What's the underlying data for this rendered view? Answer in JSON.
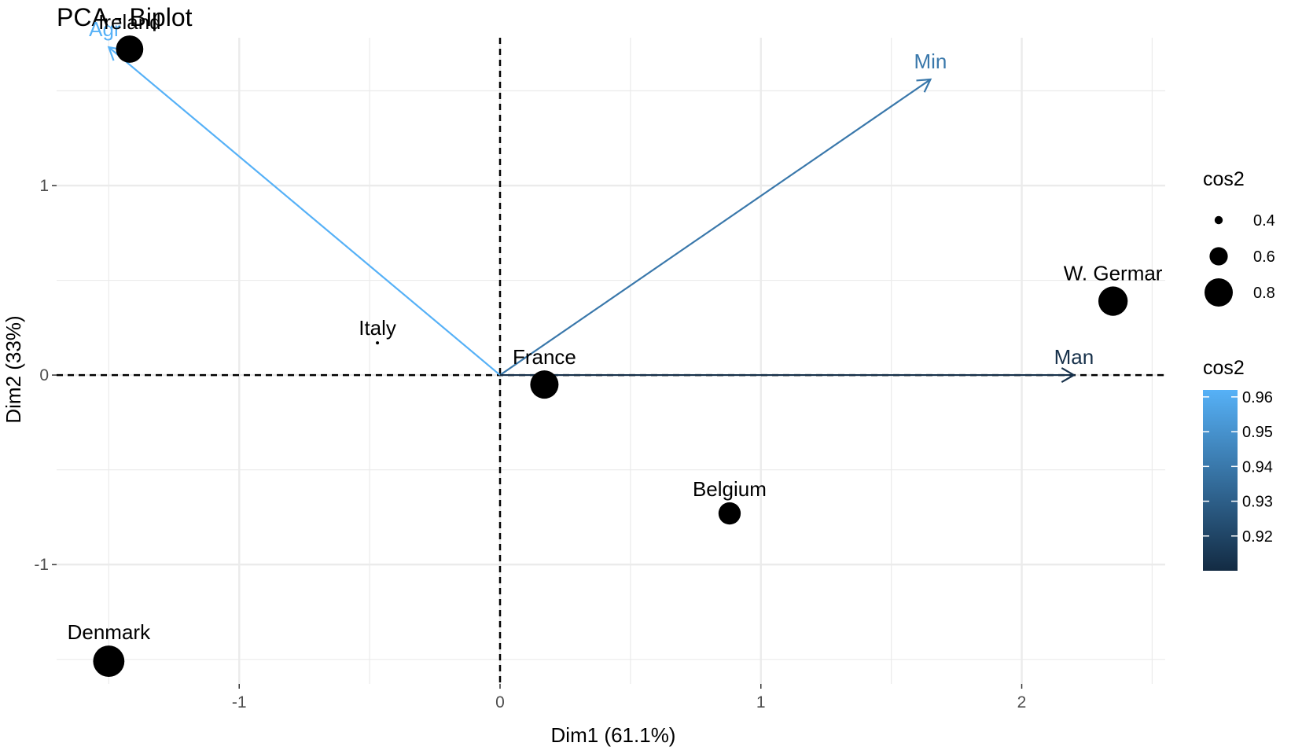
{
  "chart_data": {
    "type": "scatter",
    "title": "PCA - Biplot",
    "xlabel": "Dim1 (61.1%)",
    "ylabel": "Dim2 (33%)",
    "xlim": [
      -1.7,
      2.55
    ],
    "ylim": [
      -1.63,
      1.78
    ],
    "grid": true,
    "x_ticks": [
      {
        "value": -1,
        "label": "-1"
      },
      {
        "value": 0,
        "label": "0"
      },
      {
        "value": 1,
        "label": "1"
      },
      {
        "value": 2,
        "label": "2"
      }
    ],
    "y_ticks": [
      {
        "value": 1,
        "label": "1"
      },
      {
        "value": 0,
        "label": "0"
      },
      {
        "value": -1,
        "label": "-1"
      }
    ],
    "points": [
      {
        "label": "Ireland",
        "x": -1.42,
        "y": 1.72,
        "cos2": 0.78
      },
      {
        "label": "Italy",
        "x": -0.47,
        "y": 0.17,
        "cos2": 0.3
      },
      {
        "label": "France",
        "x": 0.17,
        "y": -0.05,
        "cos2": 0.8
      },
      {
        "label": "Belgium",
        "x": 0.88,
        "y": -0.73,
        "cos2": 0.68
      },
      {
        "label": "W. Germar",
        "x": 2.35,
        "y": 0.39,
        "cos2": 0.82
      },
      {
        "label": "Denmark",
        "x": -1.5,
        "y": -1.51,
        "cos2": 0.86
      }
    ],
    "variables": [
      {
        "label": "Agr",
        "x": -1.5,
        "y": 1.73,
        "cos2": 0.965
      },
      {
        "label": "Min",
        "x": 1.65,
        "y": 1.56,
        "cos2": 0.94
      },
      {
        "label": "Man",
        "x": 2.2,
        "y": 0.0,
        "cos2": 0.912
      }
    ],
    "legend_size": {
      "title": "cos2",
      "entries": [
        {
          "label": "0.4",
          "value": 0.4
        },
        {
          "label": "0.6",
          "value": 0.6
        },
        {
          "label": "0.8",
          "value": 0.8
        }
      ]
    },
    "legend_color": {
      "title": "cos2",
      "min": 0.91,
      "max": 0.962,
      "low_color": "#132b43",
      "high_color": "#56b1f7",
      "entries": [
        {
          "label": "0.96",
          "value": 0.96
        },
        {
          "label": "0.95",
          "value": 0.95
        },
        {
          "label": "0.94",
          "value": 0.94
        },
        {
          "label": "0.93",
          "value": 0.93
        },
        {
          "label": "0.92",
          "value": 0.92
        }
      ]
    },
    "colors": {
      "grid": "#ebebeb",
      "points": "#000000",
      "reference_lines": "#000000"
    }
  }
}
